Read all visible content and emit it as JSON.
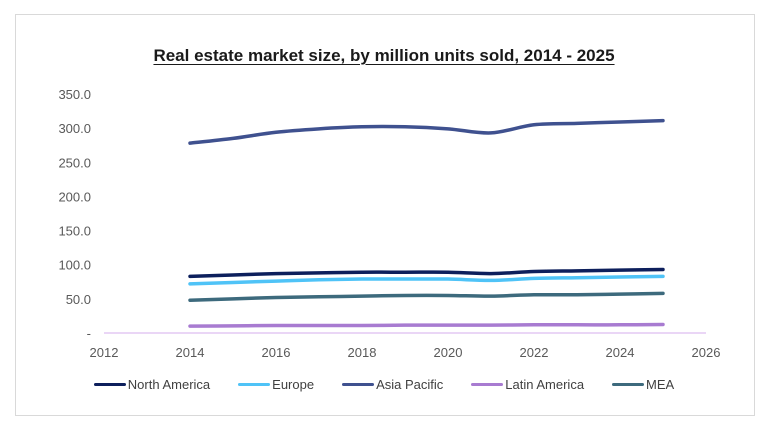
{
  "chart_data": {
    "type": "line",
    "title": "Real estate market size, by million units sold, 2014 - 2025",
    "xlabel": "",
    "ylabel": "",
    "xlim": [
      2012,
      2026
    ],
    "ylim": [
      0,
      350
    ],
    "x_ticks": [
      "2012",
      "2014",
      "2016",
      "2018",
      "2020",
      "2022",
      "2024",
      "2026"
    ],
    "y_ticks": [
      "-",
      "50.0",
      "100.0",
      "150.0",
      "200.0",
      "250.0",
      "300.0",
      "350.0"
    ],
    "grid": false,
    "legend_position": "bottom",
    "x": [
      2014,
      2015,
      2016,
      2017,
      2018,
      2019,
      2020,
      2021,
      2022,
      2023,
      2024,
      2025
    ],
    "series": [
      {
        "name": "North America",
        "color": "#0d1f5c",
        "values": [
          83,
          85,
          87,
          88,
          89,
          89,
          89,
          87,
          90,
          91,
          92,
          93
        ]
      },
      {
        "name": "Europe",
        "color": "#4fc3f7",
        "values": [
          72,
          74,
          76,
          78,
          79,
          79,
          79,
          77,
          80,
          81,
          82,
          83
        ]
      },
      {
        "name": "Asia Pacific",
        "color": "#3f518f",
        "values": [
          278,
          285,
          294,
          299,
          302,
          302,
          299,
          293,
          305,
          307,
          309,
          311
        ]
      },
      {
        "name": "Latin America",
        "color": "#a87bd1",
        "values": [
          10,
          10.5,
          11,
          11,
          11,
          11.5,
          11.5,
          11.5,
          12,
          12,
          12,
          12.5
        ]
      },
      {
        "name": "MEA",
        "color": "#3d6a7d",
        "values": [
          48,
          50,
          52,
          53,
          54,
          55,
          55,
          54,
          56,
          56,
          57,
          58
        ]
      }
    ]
  }
}
